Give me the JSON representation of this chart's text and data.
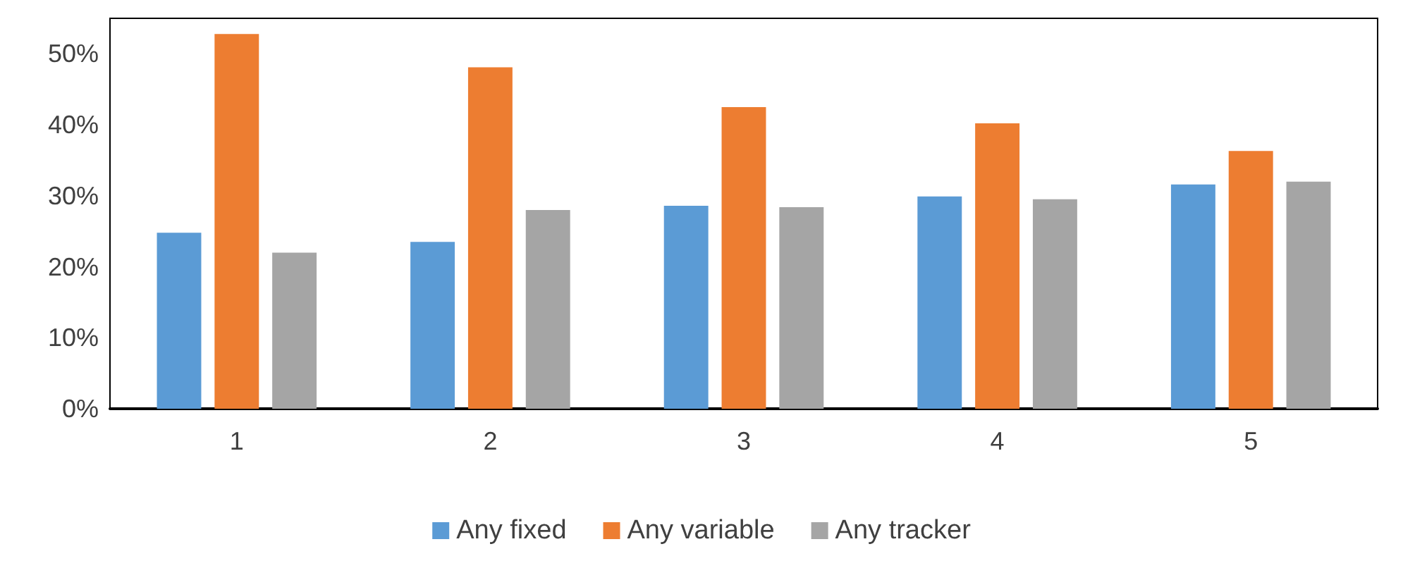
{
  "chart_data": {
    "type": "bar",
    "categories": [
      "1",
      "2",
      "3",
      "4",
      "5"
    ],
    "series": [
      {
        "name": "Any fixed",
        "color": "#5b9bd5",
        "values": [
          24.8,
          23.5,
          28.6,
          29.9,
          31.6
        ]
      },
      {
        "name": "Any variable",
        "color": "#ed7d31",
        "values": [
          52.8,
          48.1,
          42.5,
          40.2,
          36.3
        ]
      },
      {
        "name": "Any tracker",
        "color": "#a5a5a5",
        "values": [
          22.0,
          28.0,
          28.4,
          29.5,
          32.0
        ]
      }
    ],
    "ylim": [
      0,
      55
    ],
    "yticks": [
      {
        "value": 0,
        "label": "0%"
      },
      {
        "value": 10,
        "label": "10%"
      },
      {
        "value": 20,
        "label": "20%"
      },
      {
        "value": 30,
        "label": "30%"
      },
      {
        "value": 40,
        "label": "40%"
      },
      {
        "value": 50,
        "label": "50%"
      }
    ],
    "grid": false,
    "legend": "bottom"
  }
}
